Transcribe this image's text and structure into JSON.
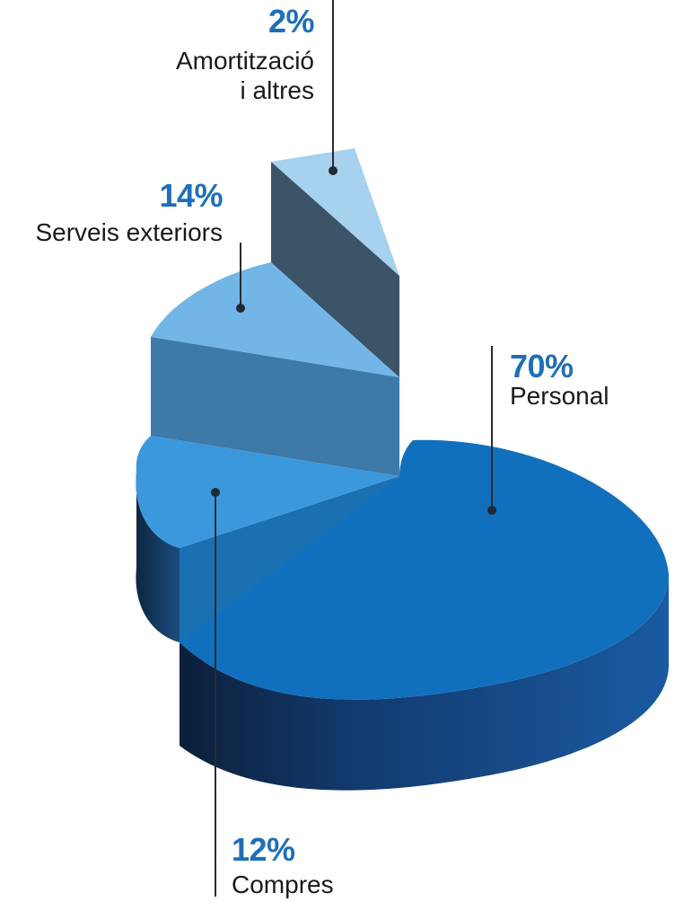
{
  "chart_data": {
    "type": "pie",
    "slices": [
      {
        "label": "Personal",
        "label_lines": [
          "Personal"
        ],
        "value": 70,
        "value_text": "70%",
        "color": "#1170bd"
      },
      {
        "label": "Compres",
        "label_lines": [
          "Compres"
        ],
        "value": 12,
        "value_text": "12%",
        "color": "#2f8fd6"
      },
      {
        "label": "Serveis exteriors",
        "label_lines": [
          "Serveis exteriors"
        ],
        "value": 14,
        "value_text": "14%",
        "color": "#6fb4e8"
      },
      {
        "label": "Amortització i altres",
        "label_lines": [
          "Amortització",
          "i altres"
        ],
        "value": 2,
        "value_text": "2%",
        "color": "#a6d1f0"
      }
    ],
    "percent_color": "#1f6fb8",
    "style": "exploded 3D pie"
  }
}
